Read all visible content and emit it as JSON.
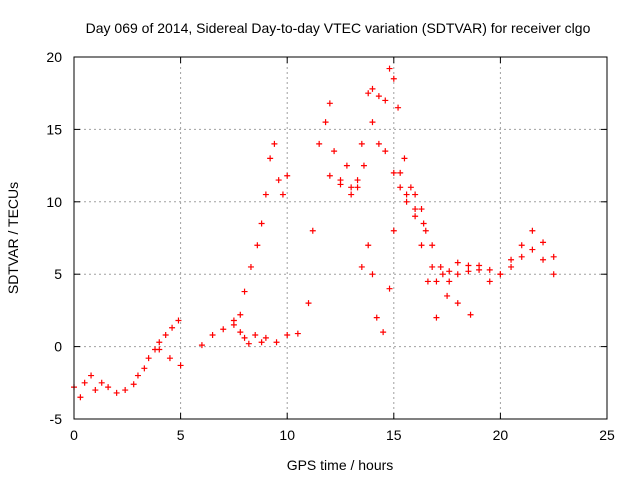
{
  "chart_data": {
    "type": "scatter",
    "title": "Day 069 of 2014, Sidereal Day-to-day VTEC variation (SDTVAR) for receiver clgo",
    "xlabel": "GPS time / hours",
    "ylabel": "SDTVAR / TECUs",
    "xlim": [
      0,
      25
    ],
    "ylim": [
      -5,
      20
    ],
    "xticks": [
      "0",
      "5",
      "10",
      "15",
      "20",
      "25"
    ],
    "yticks": [
      "-5",
      "0",
      "5",
      "10",
      "15",
      "20"
    ],
    "grid": true,
    "marker": "+",
    "series": [
      {
        "name": "SDTVAR",
        "color": "#ff0000",
        "x": [
          0.0,
          0.3,
          0.5,
          0.8,
          1.0,
          1.3,
          1.6,
          2.0,
          2.4,
          2.8,
          3.0,
          3.3,
          3.5,
          3.8,
          4.0,
          4.3,
          4.6,
          4.9,
          4.0,
          4.5,
          5.0,
          6.0,
          6.5,
          7.0,
          7.5,
          7.8,
          8.0,
          8.2,
          8.5,
          8.8,
          9.0,
          9.5,
          10.0,
          10.5,
          7.5,
          7.8,
          8.0,
          8.3,
          8.6,
          8.8,
          9.0,
          9.2,
          9.4,
          9.6,
          9.8,
          10.0,
          11.0,
          11.2,
          11.5,
          11.8,
          12.0,
          12.2,
          12.5,
          12.8,
          13.0,
          13.3,
          13.5,
          13.8,
          14.0,
          14.3,
          14.6,
          14.8,
          15.0,
          15.2,
          15.5,
          15.8,
          16.0,
          16.3,
          16.5,
          16.8,
          17.0,
          17.3,
          17.6,
          18.0,
          18.5,
          19.0,
          19.5,
          20.0,
          20.5,
          21.0,
          21.5,
          22.0,
          22.5,
          12.0,
          12.5,
          13.0,
          13.3,
          13.6,
          14.0,
          14.3,
          14.6,
          15.0,
          15.3,
          15.6,
          16.0,
          16.4,
          16.8,
          17.2,
          17.6,
          18.0,
          18.5,
          19.0,
          19.5,
          20.0,
          20.5,
          21.0,
          21.5,
          22.0,
          22.5,
          13.5,
          13.8,
          14.0,
          14.2,
          14.5,
          14.8,
          15.0,
          15.3,
          15.6,
          16.0,
          16.3,
          16.6,
          17.0,
          17.5,
          18.0,
          18.6
        ],
        "y": [
          -2.8,
          -3.5,
          -2.5,
          -2.0,
          -3.0,
          -2.5,
          -2.8,
          -3.2,
          -3.0,
          -2.6,
          -2.0,
          -1.5,
          -0.8,
          -0.2,
          0.3,
          0.8,
          1.3,
          1.8,
          -0.2,
          -0.8,
          -1.3,
          0.1,
          0.8,
          1.2,
          1.5,
          1.0,
          0.6,
          0.2,
          0.8,
          0.3,
          0.6,
          0.3,
          0.8,
          0.9,
          1.8,
          2.2,
          3.8,
          5.5,
          7.0,
          8.5,
          10.5,
          13.0,
          14.0,
          11.5,
          10.5,
          11.8,
          3.0,
          8.0,
          14.0,
          15.5,
          16.8,
          13.5,
          11.5,
          12.5,
          11.0,
          11.5,
          14.0,
          17.5,
          17.8,
          17.3,
          17.0,
          19.2,
          18.5,
          16.5,
          13.0,
          11.0,
          10.5,
          9.5,
          8.0,
          5.5,
          4.5,
          5.0,
          5.2,
          5.8,
          5.6,
          5.3,
          4.5,
          5.0,
          6.0,
          7.0,
          8.0,
          7.2,
          6.2,
          11.8,
          11.2,
          10.5,
          11.0,
          12.5,
          15.5,
          14.0,
          13.5,
          12.0,
          11.0,
          10.0,
          9.5,
          8.5,
          7.0,
          5.5,
          4.5,
          5.0,
          5.2,
          5.6,
          5.3,
          5.0,
          5.5,
          6.2,
          6.7,
          6.0,
          5.0,
          5.5,
          7.0,
          5.0,
          2.0,
          1.0,
          4.0,
          8.0,
          12.0,
          10.5,
          9.0,
          7.0,
          4.5,
          2.0,
          3.5,
          3.0,
          2.2
        ]
      }
    ]
  }
}
